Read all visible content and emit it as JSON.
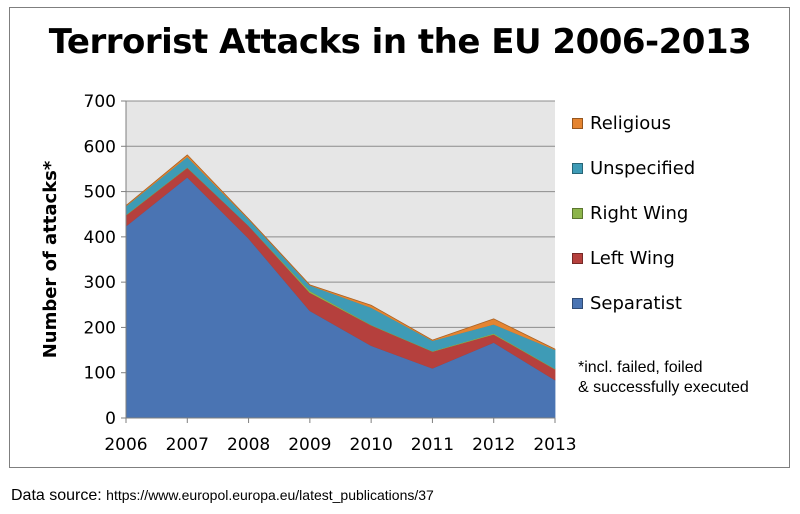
{
  "chart_data": {
    "type": "area",
    "title": "Terrorist Attacks in the EU 2006-2013",
    "xlabel": "",
    "ylabel": "Number of attacks*",
    "ylim": [
      0,
      700
    ],
    "yticks": [
      "0",
      "100",
      "200",
      "300",
      "400",
      "500",
      "600",
      "700"
    ],
    "categories": [
      "2006",
      "2007",
      "2008",
      "2009",
      "2010",
      "2011",
      "2012",
      "2013"
    ],
    "stacked": true,
    "grid": true,
    "legend_position": "right",
    "series": [
      {
        "name": "Separatist",
        "color": "#4a74b3",
        "values": [
          424,
          532,
          397,
          237,
          160,
          110,
          167,
          84
        ]
      },
      {
        "name": "Left Wing",
        "color": "#b5403d",
        "values": [
          24,
          21,
          28,
          40,
          45,
          37,
          18,
          24
        ]
      },
      {
        "name": "Right Wing",
        "color": "#8db54b",
        "values": [
          1,
          1,
          0,
          4,
          1,
          1,
          2,
          1
        ]
      },
      {
        "name": "Unspecified",
        "color": "#3e9bb6",
        "values": [
          19,
          23,
          14,
          12,
          38,
          23,
          20,
          42
        ]
      },
      {
        "name": "Religious",
        "color": "#e58430",
        "values": [
          1,
          4,
          1,
          1,
          5,
          1,
          12,
          1
        ]
      }
    ],
    "footnote": [
      "*incl. failed, foiled",
      "& successfully executed"
    ],
    "source_label": "Data source:",
    "source_url": "https://www.europol.europa.eu/latest_publications/37"
  }
}
